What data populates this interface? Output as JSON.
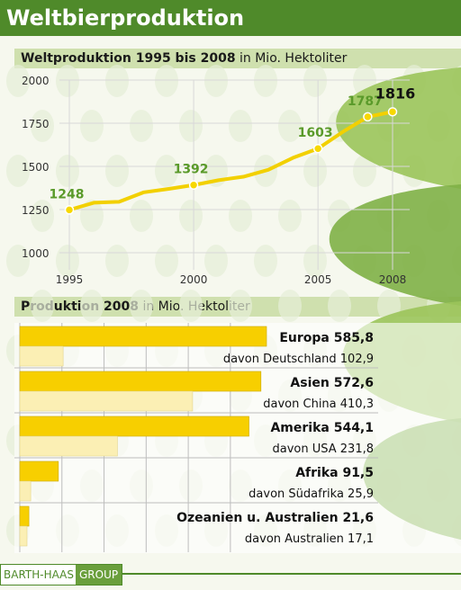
{
  "title": "Weltbierproduktion",
  "line_header": {
    "bold": "Weltproduktion 1995 bis 2008",
    "rest": "in Mio. Hektoliter"
  },
  "bar_header": {
    "bold": "Produktion 2008",
    "rest": "in Mio. Hektoliter"
  },
  "logo": {
    "part1": "BARTH-HAAS",
    "part2": "GROUP"
  },
  "colors": {
    "brand_green": "#4f8a2a",
    "line_yellow": "#f2d000",
    "bar_region": "#f7cf00",
    "bar_sub": "#fbefb4"
  },
  "chart_data": [
    {
      "type": "line",
      "title": "Weltproduktion 1995 bis 2008",
      "ylabel": "in Mio. Hektoliter",
      "x": [
        1995,
        1996,
        1997,
        1998,
        1999,
        2000,
        2001,
        2002,
        2003,
        2004,
        2005,
        2006,
        2007,
        2008
      ],
      "values": [
        1248,
        1290,
        1295,
        1350,
        1370,
        1392,
        1420,
        1440,
        1480,
        1550,
        1603,
        1700,
        1787,
        1816
      ],
      "labeled_points": [
        {
          "x": 1995,
          "y": 1248
        },
        {
          "x": 2000,
          "y": 1392
        },
        {
          "x": 2005,
          "y": 1603
        },
        {
          "x": 2007,
          "y": 1787
        },
        {
          "x": 2008,
          "y": 1816
        }
      ],
      "x_ticks": [
        1995,
        2000,
        2005,
        2008
      ],
      "y_ticks": [
        1000,
        1250,
        1500,
        1750,
        2000
      ],
      "ylim": [
        1000,
        2000
      ],
      "xlim": [
        1995,
        2008
      ],
      "grid": true
    },
    {
      "type": "bar",
      "title": "Produktion 2008",
      "ylabel": "in Mio. Hektoliter",
      "orientation": "horizontal",
      "xlim": [
        0,
        600
      ],
      "grid": true,
      "rows": [
        {
          "region": "Europa 585,8",
          "value": 585.8,
          "sub_label": "davon Deutschland 102,9",
          "sub_value": 102.9
        },
        {
          "region": "Asien 572,6",
          "value": 572.6,
          "sub_label": "davon China 410,3",
          "sub_value": 410.3
        },
        {
          "region": "Amerika 544,1",
          "value": 544.1,
          "sub_label": "davon USA 231,8",
          "sub_value": 231.8
        },
        {
          "region": "Afrika 91,5",
          "value": 91.5,
          "sub_label": "davon Südafrika 25,9",
          "sub_value": 25.9
        },
        {
          "region": "Ozeanien u. Australien 21,6",
          "value": 21.6,
          "sub_label": "davon Australien 17,1",
          "sub_value": 17.1
        }
      ]
    }
  ]
}
